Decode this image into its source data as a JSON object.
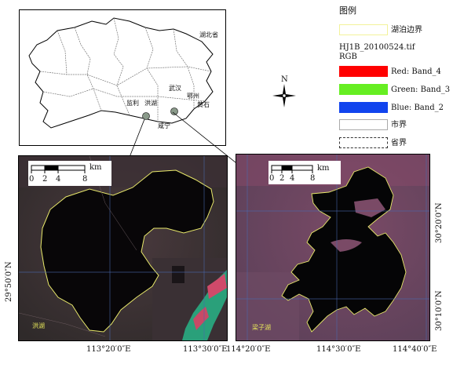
{
  "inset_map": {
    "province_label": "湖北省",
    "cities": {
      "wuhan": "武汉",
      "ezhou": "鄂州",
      "huangshi": "黄石",
      "jianli": "监利",
      "honghu": "洪湖",
      "xianning": "咸宁"
    }
  },
  "legend": {
    "title": "图例",
    "lake_boundary": "湖泊边界",
    "raster_name": "HJ1B_20100524.tif",
    "rgb_label": "RGB",
    "red": "Red: Band_4",
    "green": "Green: Band_3",
    "blue": "Blue: Band_2",
    "city_boundary": "市界",
    "province_boundary": "省界",
    "colors": {
      "lake_boundary": "#f2f29a",
      "red": "#ff0000",
      "green": "#66ee22",
      "blue": "#1144ee"
    }
  },
  "north_arrow": {
    "label": "N"
  },
  "scale_bar_left": {
    "unit": "km",
    "ticks": [
      "0",
      "2",
      "4",
      "8"
    ]
  },
  "scale_bar_right": {
    "unit": "km",
    "ticks": [
      "0",
      "2",
      "4",
      "8"
    ]
  },
  "left_panel": {
    "lake_name": "洪湖",
    "x_ticks": [
      "113°20′0″E",
      "113°30′0″E"
    ],
    "y_ticks": [
      "29°50′0″N"
    ]
  },
  "right_panel": {
    "lake_name": "梁子湖",
    "x_ticks": [
      "114°20′0″E",
      "114°30′0″E",
      "114°40′0″E"
    ],
    "y_ticks": [
      "30°20′0″N",
      "30°10′0″N"
    ]
  }
}
